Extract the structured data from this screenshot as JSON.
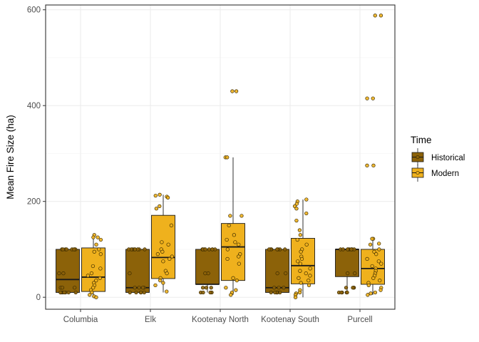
{
  "chart_data": {
    "type": "box",
    "title": "",
    "xlabel": "",
    "ylabel": "Mean Fire Size (ha)",
    "ylim": [
      -25,
      610
    ],
    "yticks": [
      0,
      200,
      400,
      600
    ],
    "grid": true,
    "legend": {
      "title": "Time",
      "position": "right"
    },
    "categories": [
      "Columbia",
      "Elk",
      "Kootenay North",
      "Kootenay South",
      "Purcell"
    ],
    "series": [
      {
        "name": "Historical",
        "color": "#8C6209",
        "boxes": [
          {
            "min": 10,
            "q1": 10,
            "median": 37,
            "q3": 100,
            "max": 100,
            "points": [
              100,
              100,
              100,
              100,
              100,
              100,
              100,
              100,
              50,
              50,
              20,
              20,
              20,
              10,
              10,
              10,
              10,
              10,
              10,
              10
            ]
          },
          {
            "min": 10,
            "q1": 10,
            "median": 20,
            "q3": 100,
            "max": 100,
            "points": [
              100,
              100,
              100,
              100,
              100,
              100,
              100,
              100,
              50,
              20,
              20,
              20,
              20,
              10,
              10,
              10,
              10,
              10
            ]
          },
          {
            "min": 10,
            "q1": 27,
            "median": 27,
            "q3": 100,
            "max": 100,
            "points": [
              100,
              100,
              100,
              100,
              100,
              100,
              100,
              100,
              50,
              50,
              20,
              20,
              20,
              10,
              10,
              10,
              10
            ]
          },
          {
            "min": 10,
            "q1": 10,
            "median": 20,
            "q3": 100,
            "max": 100,
            "points": [
              100,
              100,
              100,
              100,
              100,
              100,
              100,
              50,
              50,
              20,
              20,
              20,
              10,
              10,
              10,
              10,
              10,
              10
            ]
          },
          {
            "min": 10,
            "q1": 43,
            "median": 100,
            "q3": 100,
            "max": 100,
            "points": [
              100,
              100,
              100,
              100,
              100,
              100,
              100,
              100,
              100,
              50,
              50,
              20,
              20,
              20,
              20,
              10,
              10,
              10,
              10,
              10
            ]
          }
        ]
      },
      {
        "name": "Modern",
        "color": "#EFB11D",
        "boxes": [
          {
            "min": 0,
            "q1": 12,
            "median": 42,
            "q3": 103,
            "max": 130,
            "points": [
              130,
              125,
              125,
              120,
              110,
              100,
              95,
              90,
              65,
              60,
              50,
              45,
              40,
              35,
              30,
              25,
              20,
              15,
              10,
              5,
              2,
              0
            ]
          },
          {
            "min": 10,
            "q1": 39,
            "median": 83,
            "q3": 171,
            "max": 214,
            "points": [
              214,
              212,
              210,
              208,
              190,
              185,
              150,
              115,
              110,
              100,
              95,
              90,
              85,
              80,
              75,
              55,
              50,
              40,
              35,
              30,
              25,
              12
            ]
          },
          {
            "min": 5,
            "q1": 35,
            "median": 105,
            "q3": 154,
            "max": 292,
            "points": [
              430,
              430,
              292,
              292,
              170,
              170,
              150,
              130,
              120,
              115,
              110,
              100,
              90,
              85,
              80,
              70,
              40,
              35,
              20,
              15,
              10,
              5
            ]
          },
          {
            "min": 0,
            "q1": 28,
            "median": 66,
            "q3": 123,
            "max": 204,
            "points": [
              204,
              200,
              195,
              190,
              185,
              175,
              160,
              140,
              130,
              120,
              110,
              100,
              95,
              85,
              80,
              75,
              70,
              60,
              55,
              50,
              45,
              40,
              35,
              30,
              25,
              15,
              10,
              8,
              5,
              0
            ]
          },
          {
            "min": 5,
            "q1": 27,
            "median": 60,
            "q3": 100,
            "max": 122,
            "points": [
              588,
              588,
              415,
              415,
              275,
              275,
              122,
              122,
              112,
              110,
              100,
              95,
              90,
              80,
              75,
              70,
              65,
              60,
              55,
              50,
              45,
              40,
              35,
              30,
              25,
              20,
              15,
              10,
              8,
              5
            ]
          }
        ]
      }
    ]
  }
}
